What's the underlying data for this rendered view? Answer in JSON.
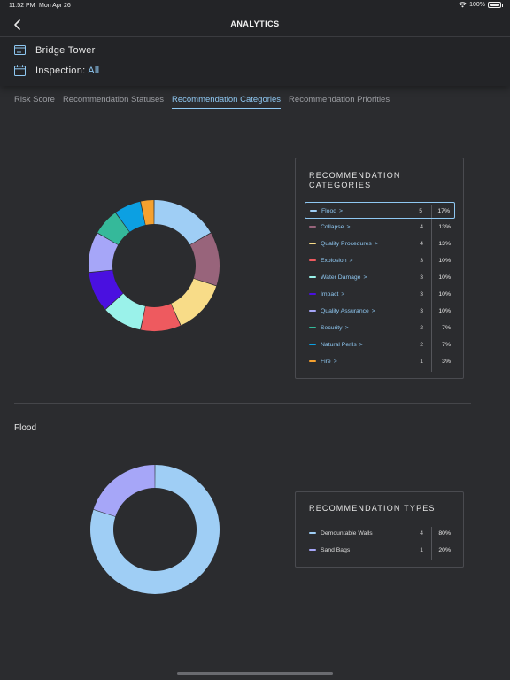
{
  "status_bar": {
    "time": "11:52 PM",
    "date": "Mon Apr 26",
    "battery": "100%"
  },
  "nav": {
    "title": "ANALYTICS"
  },
  "property": {
    "name": "Bridge Tower"
  },
  "inspection": {
    "label": "Inspection:",
    "value": "All"
  },
  "tabs": [
    {
      "label": "Risk Score",
      "active": false
    },
    {
      "label": "Recommendation Statuses",
      "active": false
    },
    {
      "label": "Recommendation Categories",
      "active": true
    },
    {
      "label": "Recommendation Priorities",
      "active": false
    }
  ],
  "categories_card": {
    "title": "RECOMMENDATION CATEGORIES",
    "rows": [
      {
        "label": "Flood",
        "count": "5",
        "pct": "17%",
        "color": "#9fcef5",
        "value": 5,
        "selected": true
      },
      {
        "label": "Collapse",
        "count": "4",
        "pct": "13%",
        "color": "#98647b",
        "value": 4
      },
      {
        "label": "Quality Procedures",
        "count": "4",
        "pct": "13%",
        "color": "#f8dc88",
        "value": 4
      },
      {
        "label": "Explosion",
        "count": "3",
        "pct": "10%",
        "color": "#ee5a5f",
        "value": 3
      },
      {
        "label": "Water Damage",
        "count": "3",
        "pct": "10%",
        "color": "#9af2ea",
        "value": 3
      },
      {
        "label": "Impact",
        "count": "3",
        "pct": "10%",
        "color": "#4a10e0",
        "value": 3
      },
      {
        "label": "Quality Assurance",
        "count": "3",
        "pct": "10%",
        "color": "#a6a6f8",
        "value": 3
      },
      {
        "label": "Security",
        "count": "2",
        "pct": "7%",
        "color": "#35b99a",
        "value": 2
      },
      {
        "label": "Natural Perils",
        "count": "2",
        "pct": "7%",
        "color": "#0ca0e2",
        "value": 2
      },
      {
        "label": "Fire",
        "count": "1",
        "pct": "3%",
        "color": "#f5a12f",
        "value": 1
      }
    ]
  },
  "flood_section": {
    "title": "Flood"
  },
  "types_card": {
    "title": "RECOMMENDATION TYPES",
    "rows": [
      {
        "label": "Demountable Walls",
        "count": "4",
        "pct": "80%",
        "color": "#9fcef5",
        "value": 4
      },
      {
        "label": "Sand Bags",
        "count": "1",
        "pct": "20%",
        "color": "#a6a6f8",
        "value": 1
      }
    ]
  },
  "icons": {
    "back": "chevron-left-icon",
    "property": "building-card-icon",
    "inspection": "calendar-icon",
    "wifi": "wifi-icon",
    "battery": "battery-icon",
    "row_chevron": "chevron-right-icon"
  }
}
